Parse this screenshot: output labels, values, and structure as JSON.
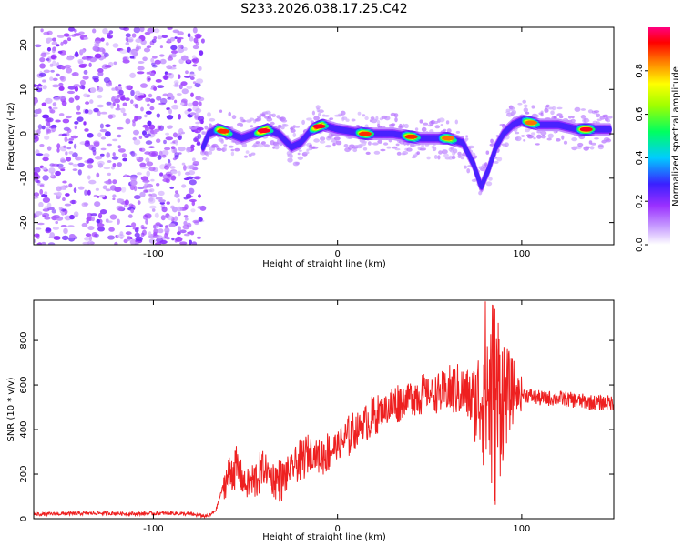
{
  "title": "S233.2026.038.17.25.C42",
  "chart_data": [
    {
      "type": "heatmap",
      "xlabel": "Height of straight line (km)",
      "ylabel": "Frequency (Hz)",
      "xlim": [
        -165,
        150
      ],
      "ylim": [
        -25,
        24
      ],
      "xticks": [
        -100,
        0,
        100
      ],
      "yticks": [
        -20,
        -10,
        0,
        10,
        20
      ],
      "grid": false,
      "colorbar": {
        "label": "Normalized spectral amplitude",
        "range": [
          0.0,
          1.0
        ],
        "ticks": [
          "0.0",
          "0.2",
          "0.4",
          "0.6",
          "0.8"
        ],
        "colormap": [
          "#ffffff",
          "#9a30ff",
          "#2020ff",
          "#00ffff",
          "#00ff00",
          "#ffff00",
          "#ff8000",
          "#ff0000",
          "#ff0080"
        ]
      },
      "noise_region_x": [
        -165,
        -75
      ],
      "ridge": {
        "description": "dominant frequency track vs height",
        "points": [
          {
            "x": -73,
            "y": -3
          },
          {
            "x": -70,
            "y": 0
          },
          {
            "x": -65,
            "y": 1
          },
          {
            "x": -58,
            "y": 0
          },
          {
            "x": -52,
            "y": -1
          },
          {
            "x": -45,
            "y": 0
          },
          {
            "x": -38,
            "y": 1
          },
          {
            "x": -32,
            "y": 0
          },
          {
            "x": -25,
            "y": -3
          },
          {
            "x": -20,
            "y": -2
          },
          {
            "x": -14,
            "y": 1
          },
          {
            "x": -8,
            "y": 2
          },
          {
            "x": 0,
            "y": 1
          },
          {
            "x": 15,
            "y": 0
          },
          {
            "x": 30,
            "y": 0
          },
          {
            "x": 45,
            "y": -1
          },
          {
            "x": 60,
            "y": -1
          },
          {
            "x": 68,
            "y": -2
          },
          {
            "x": 74,
            "y": -7
          },
          {
            "x": 78,
            "y": -12
          },
          {
            "x": 82,
            "y": -8
          },
          {
            "x": 86,
            "y": -3
          },
          {
            "x": 90,
            "y": 0
          },
          {
            "x": 95,
            "y": 2
          },
          {
            "x": 100,
            "y": 3
          },
          {
            "x": 110,
            "y": 2
          },
          {
            "x": 120,
            "y": 2
          },
          {
            "x": 130,
            "y": 1
          },
          {
            "x": 148,
            "y": 1
          }
        ],
        "amplitude_peaks": [
          {
            "x": -62,
            "y": 0,
            "amp": 0.9
          },
          {
            "x": -40,
            "y": 1,
            "amp": 0.95
          },
          {
            "x": -10,
            "y": 2,
            "amp": 0.95
          },
          {
            "x": 15,
            "y": 0,
            "amp": 0.9
          },
          {
            "x": 40,
            "y": -1,
            "amp": 0.9
          },
          {
            "x": 60,
            "y": -1,
            "amp": 0.85
          },
          {
            "x": 105,
            "y": 3,
            "amp": 0.85
          },
          {
            "x": 135,
            "y": 1,
            "amp": 0.95
          }
        ]
      }
    },
    {
      "type": "line",
      "xlabel": "Height of straight line (km)",
      "ylabel": "SNR (10 * v/v)",
      "xlim": [
        -165,
        150
      ],
      "ylim": [
        0,
        980
      ],
      "xticks": [
        -100,
        0,
        100
      ],
      "yticks": [
        0,
        200,
        400,
        600,
        800
      ],
      "grid": false,
      "color": "#ff2020",
      "series": [
        {
          "name": "SNR",
          "x": [
            -165,
            -150,
            -130,
            -110,
            -90,
            -80,
            -75,
            -70,
            -66,
            -62,
            -58,
            -55,
            -50,
            -45,
            -40,
            -35,
            -30,
            -25,
            -20,
            -15,
            -10,
            -5,
            0,
            5,
            10,
            15,
            20,
            25,
            30,
            35,
            40,
            45,
            50,
            55,
            60,
            65,
            70,
            75,
            78,
            80,
            82,
            84,
            86,
            88,
            90,
            92,
            95,
            100,
            110,
            120,
            130,
            140,
            150
          ],
          "values": [
            20,
            22,
            25,
            22,
            25,
            20,
            15,
            10,
            40,
            150,
            210,
            230,
            150,
            170,
            230,
            180,
            170,
            230,
            260,
            300,
            280,
            300,
            330,
            360,
            400,
            430,
            460,
            490,
            510,
            530,
            550,
            560,
            565,
            560,
            570,
            580,
            560,
            520,
            560,
            600,
            560,
            540,
            520,
            560,
            560,
            560,
            570,
            560,
            540,
            540,
            530,
            520,
            520
          ]
        }
      ],
      "oscillation_band": {
        "x_range": [
          -62,
          100
        ],
        "max_swing": 900
      }
    }
  ]
}
